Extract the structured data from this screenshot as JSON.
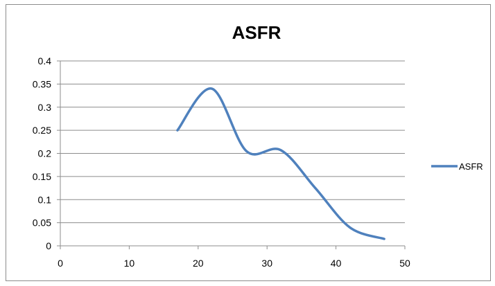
{
  "chart_data": {
    "type": "line",
    "title": "ASFR",
    "xlabel": "",
    "ylabel": "",
    "xlim": [
      0,
      50
    ],
    "ylim": [
      0,
      0.4
    ],
    "x_ticks": [
      "0",
      "10",
      "20",
      "30",
      "40",
      "50"
    ],
    "y_ticks": [
      "0",
      "0.05",
      "0.1",
      "0.15",
      "0.2",
      "0.25",
      "0.3",
      "0.35",
      "0.4"
    ],
    "grid": "horizontal",
    "legend": "right",
    "smooth": true,
    "series": [
      {
        "name": "ASFR",
        "color": "#4f81bd",
        "x": [
          17,
          22,
          27,
          32,
          37,
          42,
          47
        ],
        "y": [
          0.25,
          0.34,
          0.205,
          0.207,
          0.125,
          0.04,
          0.015
        ]
      }
    ]
  }
}
